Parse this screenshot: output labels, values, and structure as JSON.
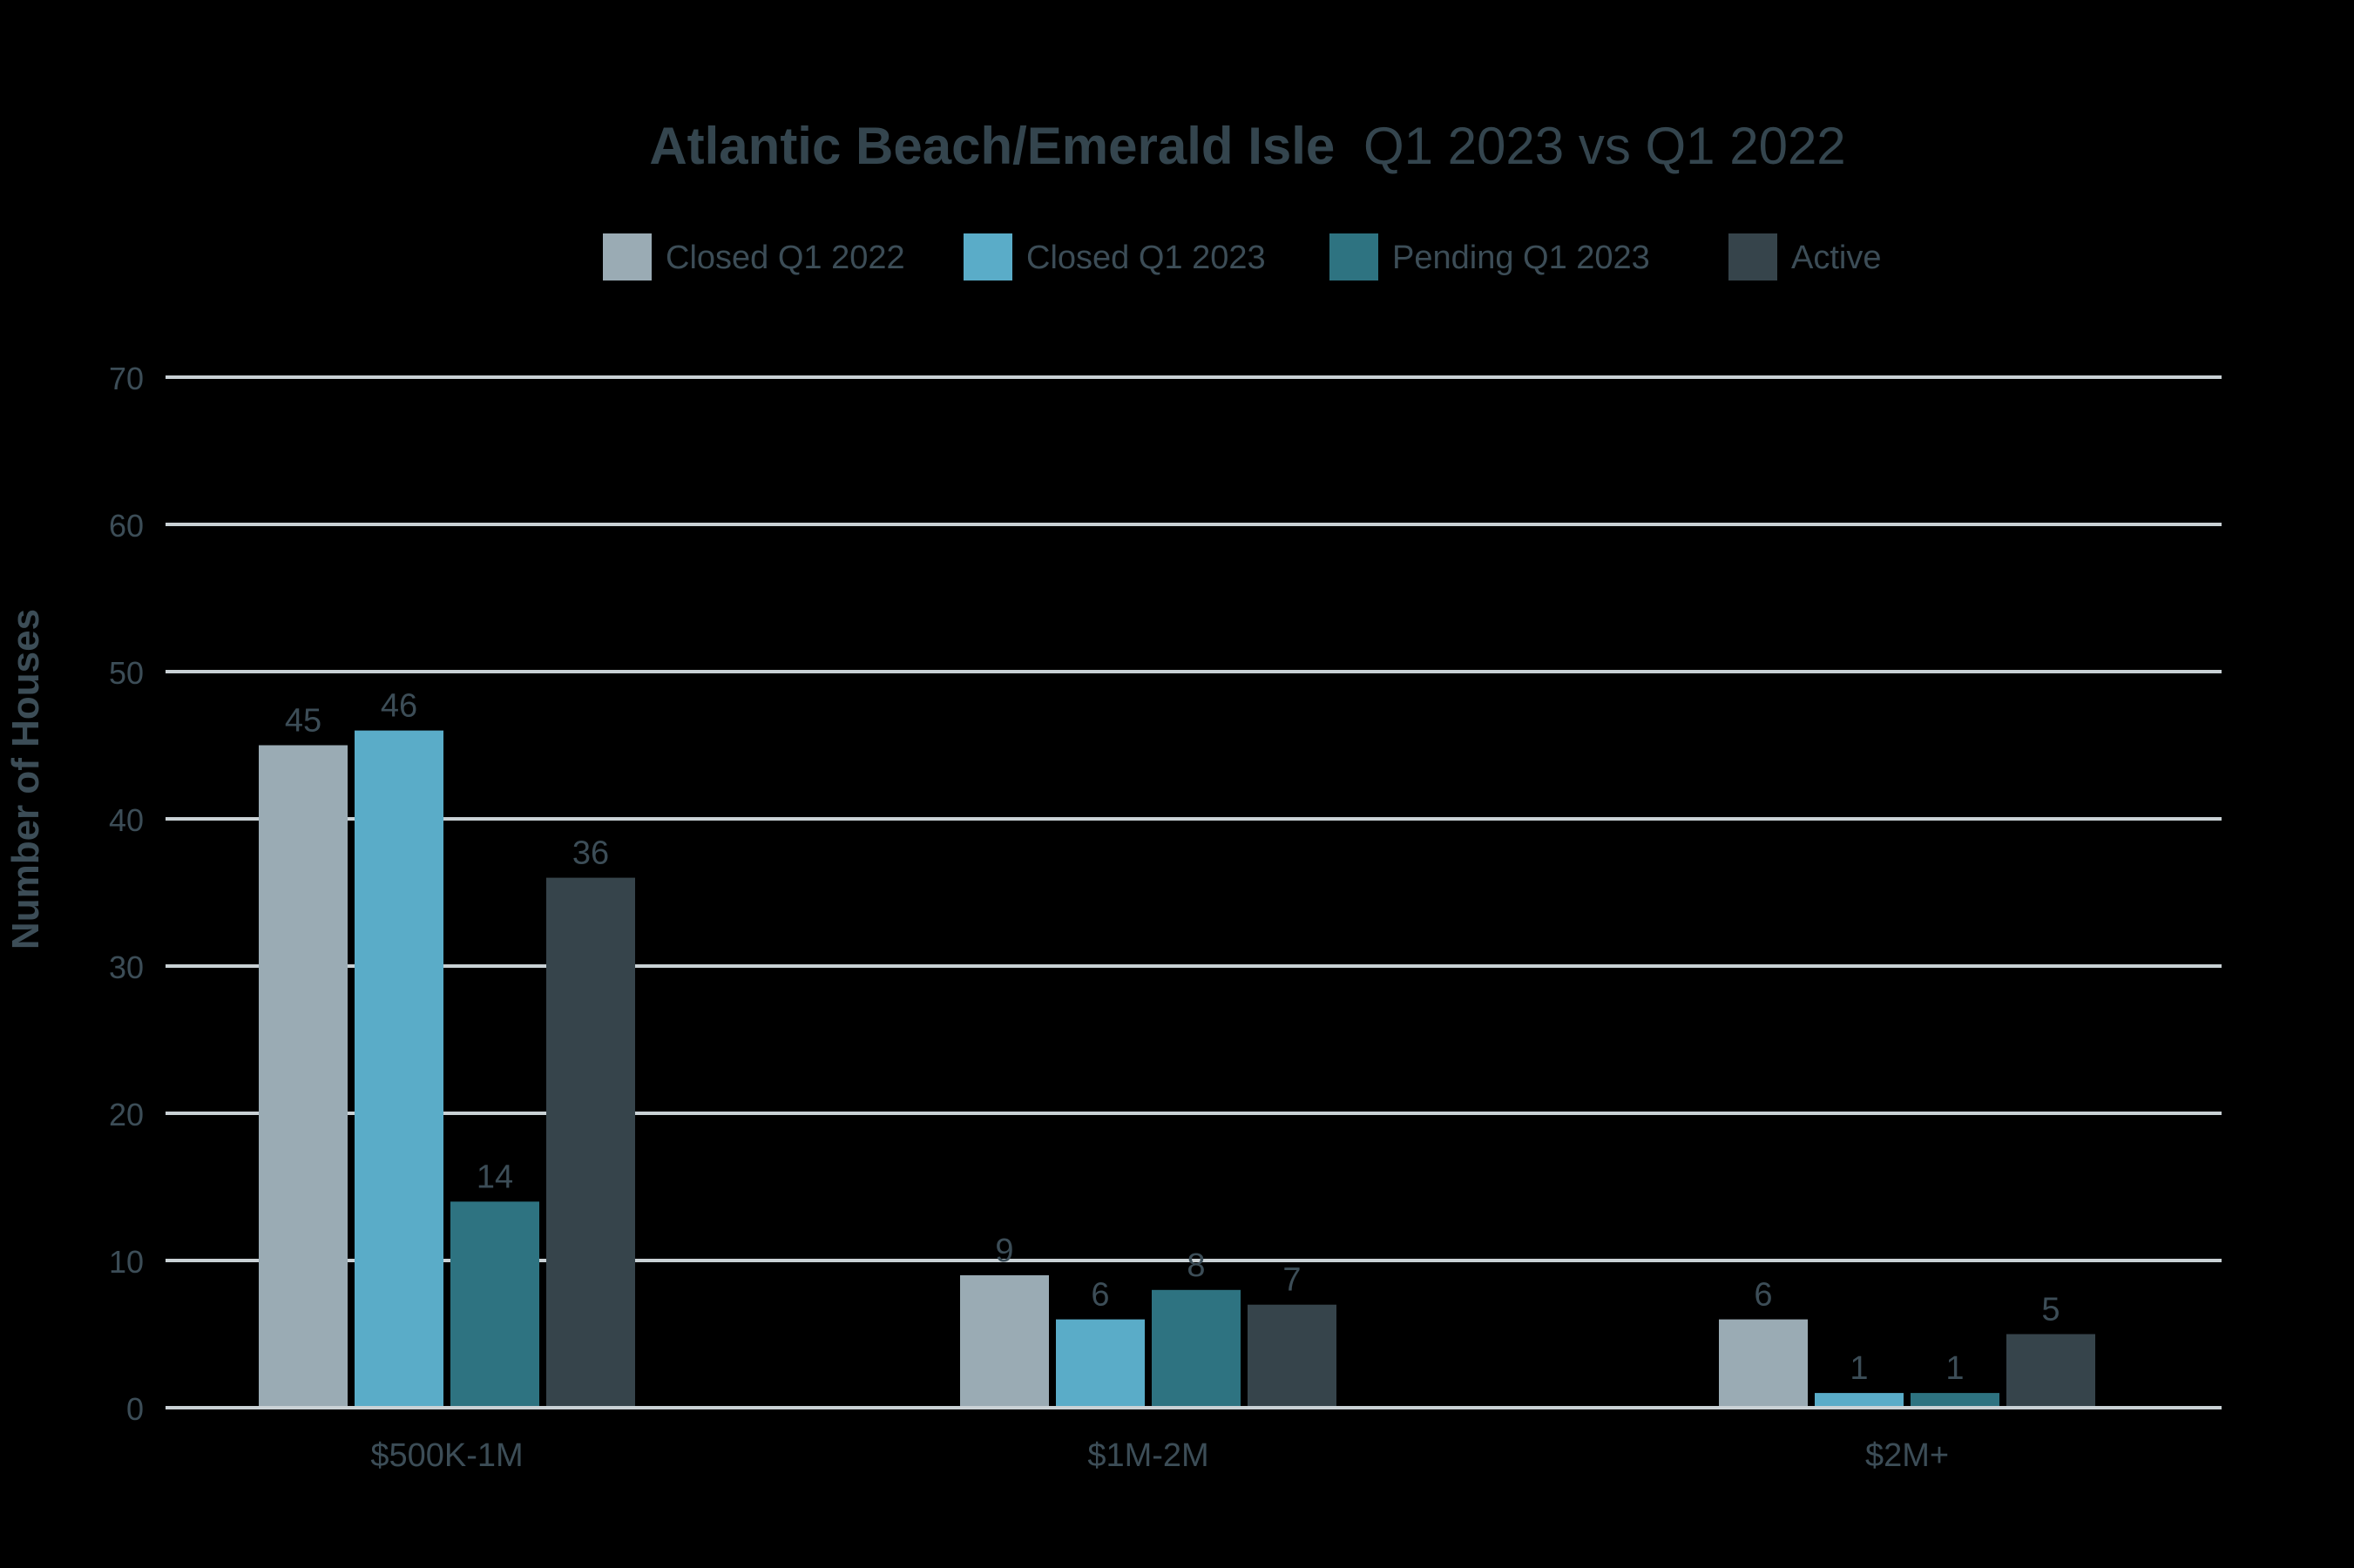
{
  "chart_data": {
    "type": "bar",
    "title_bold": "Atlantic Beach/Emerald Isle",
    "title_rest": "Q1 2023 vs Q1 2022",
    "xlabel": "",
    "ylabel": "Number of Houses",
    "ylim": [
      0,
      70
    ],
    "yticks": [
      0,
      10,
      20,
      30,
      40,
      50,
      60,
      70
    ],
    "grid": true,
    "legend_position": "top-center",
    "categories": [
      "$500K-1M",
      "$1M-2M",
      "$2M+"
    ],
    "series": [
      {
        "name": "Closed Q1 2022",
        "color": "#9aabb4",
        "values": [
          45,
          9,
          6
        ]
      },
      {
        "name": "Closed Q1 2023",
        "color": "#5aacc8",
        "values": [
          46,
          6,
          1
        ]
      },
      {
        "name": "Pending Q1 2023",
        "color": "#2e7381",
        "values": [
          14,
          8,
          1
        ]
      },
      {
        "name": "Active",
        "color": "#36444b",
        "values": [
          36,
          7,
          5
        ]
      }
    ],
    "colors": {
      "title": "#34454e",
      "axis_text": "#3c4d57",
      "gridline": "#c9d1d5",
      "background": "#000000"
    }
  }
}
